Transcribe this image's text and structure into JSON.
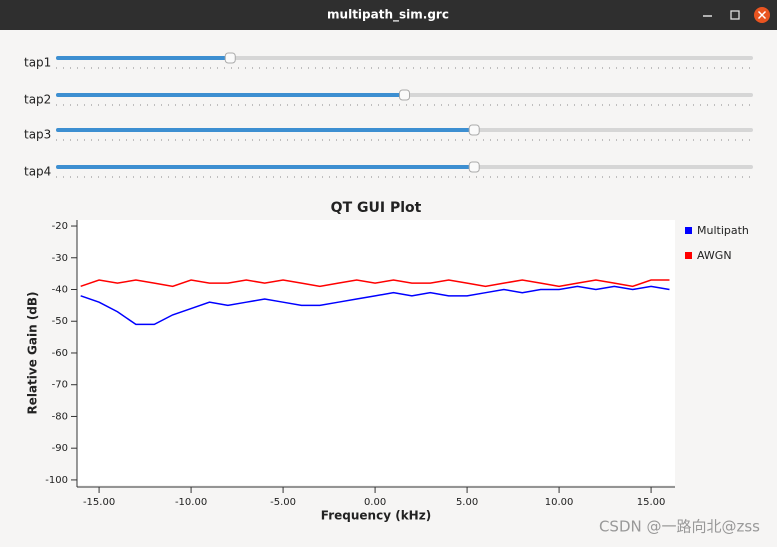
{
  "window": {
    "title": "multipath_sim.grc"
  },
  "sliders": [
    {
      "label": "tap1",
      "value": 0.25
    },
    {
      "label": "tap2",
      "value": 0.5
    },
    {
      "label": "tap3",
      "value": 0.6
    },
    {
      "label": "tap4",
      "value": 0.6
    }
  ],
  "slider_range": [
    0,
    1
  ],
  "chart_data": {
    "type": "line",
    "title": "QT GUI Plot",
    "x_label": "Frequency (kHz)",
    "y_label": "Relative Gain (dB)",
    "x": [
      -16,
      -15,
      -14,
      -13,
      -12,
      -11,
      -10,
      -9,
      -8,
      -7,
      -6,
      -5,
      -4,
      -3,
      -2,
      -1,
      0,
      1,
      2,
      3,
      4,
      5,
      6,
      7,
      8,
      9,
      10,
      11,
      12,
      13,
      14,
      15,
      16
    ],
    "series": [
      {
        "name": "Multipath",
        "color": "#0000ff",
        "values": [
          -42,
          -44,
          -47,
          -51,
          -51,
          -48,
          -46,
          -44,
          -45,
          -44,
          -43,
          -44,
          -45,
          -45,
          -44,
          -43,
          -42,
          -41,
          -42,
          -41,
          -42,
          -42,
          -41,
          -40,
          -41,
          -40,
          -40,
          -39,
          -40,
          -39,
          -40,
          -39,
          -40
        ]
      },
      {
        "name": "AWGN",
        "color": "#ff0000",
        "values": [
          -39,
          -37,
          -38,
          -37,
          -38,
          -39,
          -37,
          -38,
          -38,
          -37,
          -38,
          -37,
          -38,
          -39,
          -38,
          -37,
          -38,
          -37,
          -38,
          -38,
          -37,
          -38,
          -39,
          -38,
          -37,
          -38,
          -39,
          -38,
          -37,
          -38,
          -39,
          -37,
          -37
        ]
      }
    ],
    "xlim": [
      -16.2,
      16.3
    ],
    "xticks": [
      {
        "value": -15,
        "label": "-15.00"
      },
      {
        "value": -10,
        "label": "-10.00"
      },
      {
        "value": -5,
        "label": "-5.00"
      },
      {
        "value": 0,
        "label": "0.00"
      },
      {
        "value": 5,
        "label": "5.00"
      },
      {
        "value": 10,
        "label": "10.00"
      },
      {
        "value": 15,
        "label": "15.00"
      }
    ],
    "ylim": [
      -101.6,
      -18.1
    ],
    "yticks": [
      -20,
      -30,
      -40,
      -50,
      -60,
      -70,
      -80,
      -90,
      -100
    ],
    "legend": "right"
  },
  "watermark": "CSDN @一路向北@zss"
}
